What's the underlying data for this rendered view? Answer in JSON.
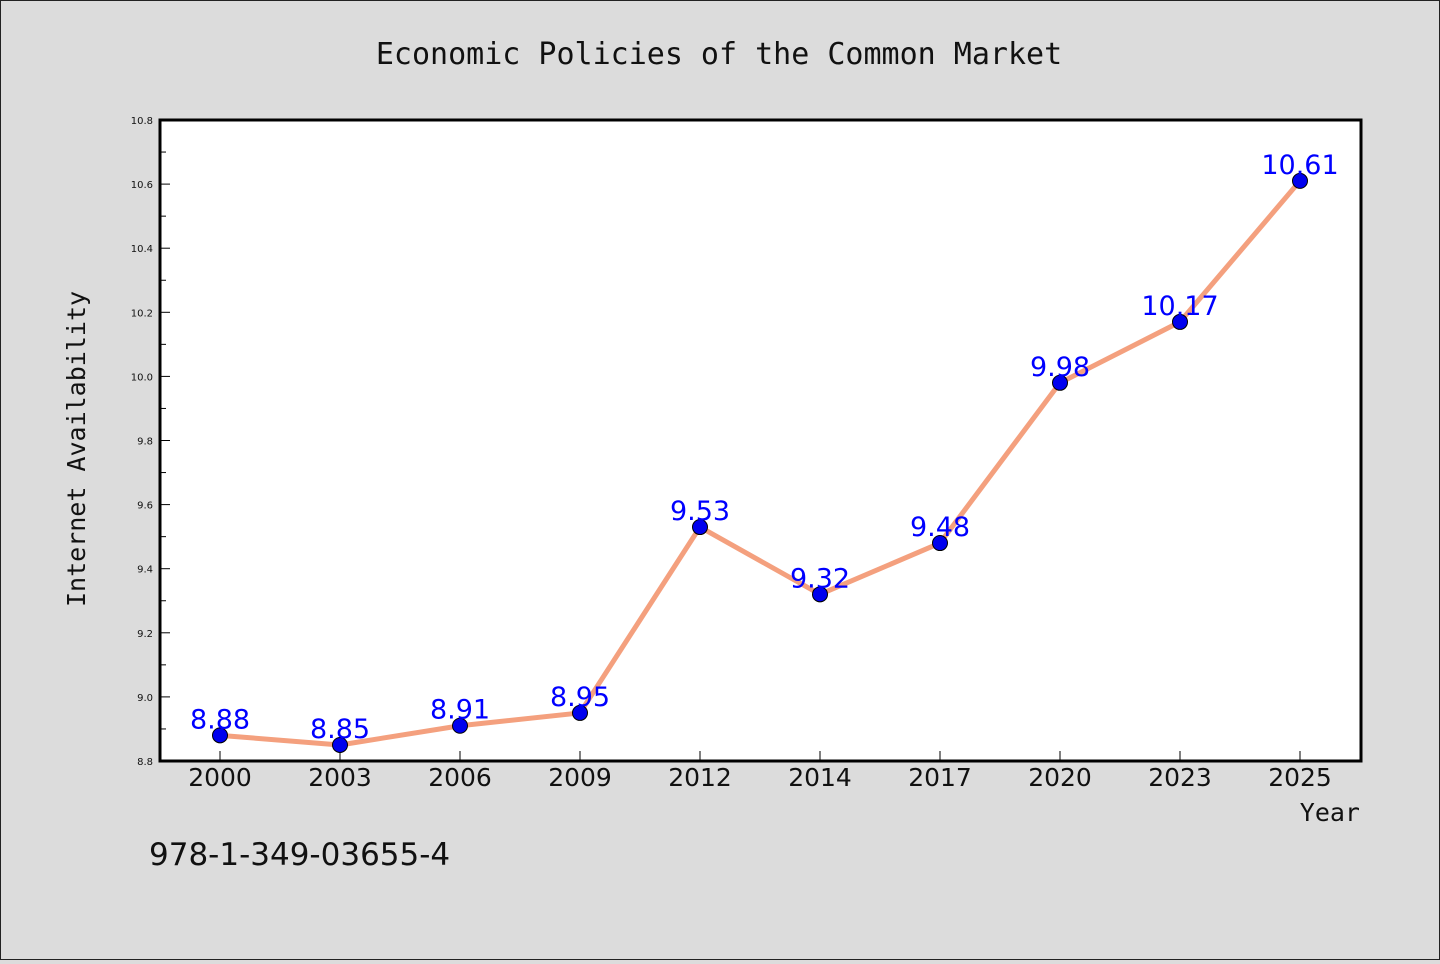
{
  "chart_data": {
    "type": "line",
    "title": "Economic Policies of the Common Market",
    "xlabel": "Year",
    "ylabel": "Internet Availability",
    "categories": [
      "2000",
      "2003",
      "2006",
      "2009",
      "2012",
      "2014",
      "2017",
      "2020",
      "2023",
      "2025"
    ],
    "series": [
      {
        "values": [
          8.88,
          8.85,
          8.91,
          8.95,
          9.53,
          9.32,
          9.48,
          9.98,
          10.17,
          10.61
        ],
        "line_color": "#f4a07e",
        "marker_color": "#0000ee",
        "label_color": "#0000ff"
      }
    ],
    "ylim": [
      8.8,
      10.8
    ],
    "yticks": [
      "8.8",
      "9.0",
      "9.2",
      "9.4",
      "9.6",
      "9.8",
      "10.0",
      "10.2",
      "10.4",
      "10.6",
      "10.8"
    ],
    "data_labels": [
      "8.88",
      "8.85",
      "8.91",
      "8.95",
      "9.53",
      "9.32",
      "9.48",
      "9.98",
      "10.17",
      "10.61"
    ],
    "grid": false,
    "legend": "none"
  },
  "annotation": {
    "text": "978-1-349-03655-4"
  },
  "colors": {
    "background": "#dcdcdc",
    "plot_background": "#ffffff"
  }
}
